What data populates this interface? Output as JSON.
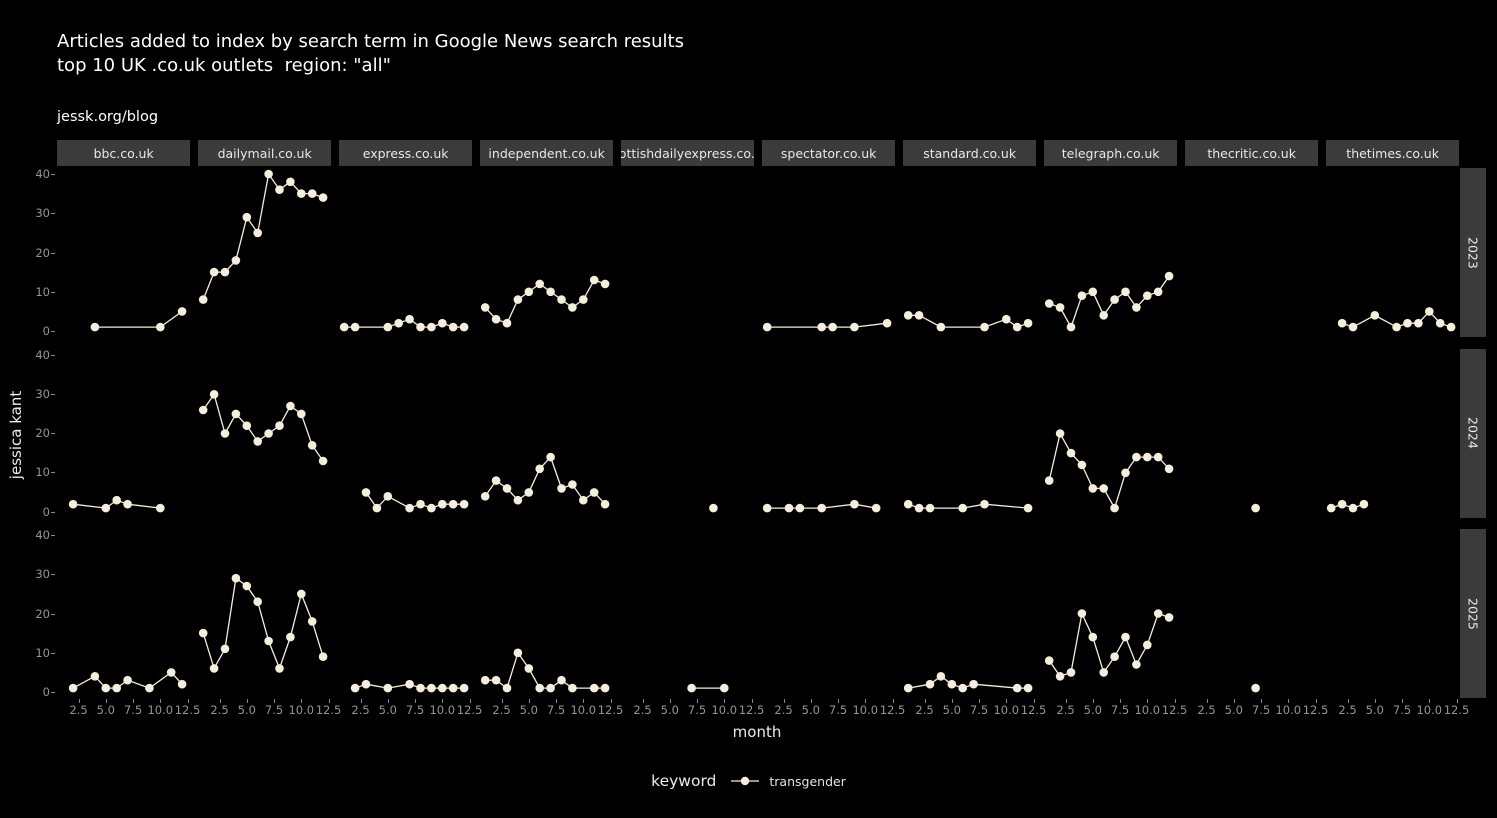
{
  "header": {
    "title_line1": "Articles added to index by search term in Google News search results",
    "title_line2": "top 10 UK .co.uk outlets  region: \"all\"",
    "blog": "jessk.org/blog"
  },
  "colors": {
    "background": "#000000",
    "series": "#f5eedd",
    "strip_bg": "#3b3b3b",
    "strip_text": "#e8e8e8",
    "axis_text": "#949494",
    "title_text": "#ffffff"
  },
  "chart_data": {
    "type": "line",
    "title": "Articles added to index by search term in Google News search results",
    "subtitle": "top 10 UK .co.uk outlets  region: \"all\"",
    "xlabel": "month",
    "ylabel": "jessica kant",
    "xlim": [
      1,
      12.5
    ],
    "ylim": [
      0,
      40
    ],
    "x_ticks": [
      "2.5",
      "5.0",
      "7.5",
      "10.0",
      "12.5"
    ],
    "x_tick_values": [
      2.5,
      5,
      7.5,
      10,
      12.5
    ],
    "y_ticks": [
      "0",
      "10",
      "20",
      "30",
      "40"
    ],
    "y_tick_values": [
      0,
      10,
      20,
      30,
      40
    ],
    "grid": false,
    "legend": {
      "title": "keyword",
      "position": "bottom",
      "entries": [
        "transgender"
      ]
    },
    "facet_cols": [
      "bbc.co.uk",
      "dailymail.co.uk",
      "express.co.uk",
      "independent.co.uk",
      "scottishdailyexpress.co.uk",
      "spectator.co.uk",
      "standard.co.uk",
      "telegraph.co.uk",
      "thecritic.co.uk",
      "thetimes.co.uk"
    ],
    "facet_rows": [
      "2023",
      "2024",
      "2025"
    ],
    "panels": [
      {
        "row": "2023",
        "col": "bbc.co.uk",
        "points": [
          [
            4,
            1
          ],
          [
            10,
            1
          ],
          [
            12,
            5
          ]
        ]
      },
      {
        "row": "2023",
        "col": "dailymail.co.uk",
        "points": [
          [
            1,
            8
          ],
          [
            2,
            15
          ],
          [
            3,
            15
          ],
          [
            4,
            18
          ],
          [
            5,
            29
          ],
          [
            6,
            25
          ],
          [
            7,
            40
          ],
          [
            8,
            36
          ],
          [
            9,
            38
          ],
          [
            10,
            35
          ],
          [
            11,
            35
          ],
          [
            12,
            34
          ]
        ]
      },
      {
        "row": "2023",
        "col": "express.co.uk",
        "points": [
          [
            1,
            1
          ],
          [
            2,
            1
          ],
          [
            5,
            1
          ],
          [
            6,
            2
          ],
          [
            7,
            3
          ],
          [
            8,
            1
          ],
          [
            9,
            1
          ],
          [
            10,
            2
          ],
          [
            11,
            1
          ],
          [
            12,
            1
          ]
        ]
      },
      {
        "row": "2023",
        "col": "independent.co.uk",
        "points": [
          [
            1,
            6
          ],
          [
            2,
            3
          ],
          [
            3,
            2
          ],
          [
            4,
            8
          ],
          [
            5,
            10
          ],
          [
            6,
            12
          ],
          [
            7,
            10
          ],
          [
            8,
            8
          ],
          [
            9,
            6
          ],
          [
            10,
            8
          ],
          [
            11,
            13
          ],
          [
            12,
            12
          ]
        ]
      },
      {
        "row": "2023",
        "col": "scottishdailyexpress.co.uk",
        "points": []
      },
      {
        "row": "2023",
        "col": "spectator.co.uk",
        "points": [
          [
            1,
            1
          ],
          [
            6,
            1
          ],
          [
            7,
            1
          ],
          [
            9,
            1
          ],
          [
            12,
            2
          ]
        ]
      },
      {
        "row": "2023",
        "col": "standard.co.uk",
        "points": [
          [
            1,
            4
          ],
          [
            2,
            4
          ],
          [
            4,
            1
          ],
          [
            8,
            1
          ],
          [
            10,
            3
          ],
          [
            11,
            1
          ],
          [
            12,
            2
          ]
        ]
      },
      {
        "row": "2023",
        "col": "telegraph.co.uk",
        "points": [
          [
            1,
            7
          ],
          [
            2,
            6
          ],
          [
            3,
            1
          ],
          [
            4,
            9
          ],
          [
            5,
            10
          ],
          [
            6,
            4
          ],
          [
            7,
            8
          ],
          [
            8,
            10
          ],
          [
            9,
            6
          ],
          [
            10,
            9
          ],
          [
            11,
            10
          ],
          [
            12,
            14
          ]
        ]
      },
      {
        "row": "2023",
        "col": "thecritic.co.uk",
        "points": []
      },
      {
        "row": "2023",
        "col": "thetimes.co.uk",
        "points": [
          [
            2,
            2
          ],
          [
            3,
            1
          ],
          [
            5,
            4
          ],
          [
            7,
            1
          ],
          [
            8,
            2
          ],
          [
            9,
            2
          ],
          [
            10,
            5
          ],
          [
            11,
            2
          ],
          [
            12,
            1
          ]
        ]
      },
      {
        "row": "2024",
        "col": "bbc.co.uk",
        "points": [
          [
            2,
            2
          ],
          [
            5,
            1
          ],
          [
            6,
            3
          ],
          [
            7,
            2
          ],
          [
            10,
            1
          ]
        ]
      },
      {
        "row": "2024",
        "col": "dailymail.co.uk",
        "points": [
          [
            1,
            26
          ],
          [
            2,
            30
          ],
          [
            3,
            20
          ],
          [
            4,
            25
          ],
          [
            5,
            22
          ],
          [
            6,
            18
          ],
          [
            7,
            20
          ],
          [
            8,
            22
          ],
          [
            9,
            27
          ],
          [
            10,
            25
          ],
          [
            11,
            17
          ],
          [
            12,
            13
          ]
        ]
      },
      {
        "row": "2024",
        "col": "express.co.uk",
        "points": [
          [
            3,
            5
          ],
          [
            4,
            1
          ],
          [
            5,
            4
          ],
          [
            7,
            1
          ],
          [
            8,
            2
          ],
          [
            9,
            1
          ],
          [
            10,
            2
          ],
          [
            11,
            2
          ],
          [
            12,
            2
          ]
        ]
      },
      {
        "row": "2024",
        "col": "independent.co.uk",
        "points": [
          [
            1,
            4
          ],
          [
            2,
            8
          ],
          [
            3,
            6
          ],
          [
            4,
            3
          ],
          [
            5,
            5
          ],
          [
            6,
            11
          ],
          [
            7,
            14
          ],
          [
            8,
            6
          ],
          [
            9,
            7
          ],
          [
            10,
            3
          ],
          [
            11,
            5
          ],
          [
            12,
            2
          ]
        ]
      },
      {
        "row": "2024",
        "col": "scottishdailyexpress.co.uk",
        "points": [
          [
            9,
            1
          ]
        ]
      },
      {
        "row": "2024",
        "col": "spectator.co.uk",
        "points": [
          [
            1,
            1
          ],
          [
            3,
            1
          ],
          [
            4,
            1
          ],
          [
            6,
            1
          ],
          [
            9,
            2
          ],
          [
            11,
            1
          ]
        ]
      },
      {
        "row": "2024",
        "col": "standard.co.uk",
        "points": [
          [
            1,
            2
          ],
          [
            2,
            1
          ],
          [
            3,
            1
          ],
          [
            6,
            1
          ],
          [
            8,
            2
          ],
          [
            12,
            1
          ]
        ]
      },
      {
        "row": "2024",
        "col": "telegraph.co.uk",
        "points": [
          [
            1,
            8
          ],
          [
            2,
            20
          ],
          [
            3,
            15
          ],
          [
            4,
            12
          ],
          [
            5,
            6
          ],
          [
            6,
            6
          ],
          [
            7,
            1
          ],
          [
            8,
            10
          ],
          [
            9,
            14
          ],
          [
            10,
            14
          ],
          [
            11,
            14
          ],
          [
            12,
            11
          ]
        ]
      },
      {
        "row": "2024",
        "col": "thecritic.co.uk",
        "points": [
          [
            7,
            1
          ]
        ]
      },
      {
        "row": "2024",
        "col": "thetimes.co.uk",
        "points": [
          [
            1,
            1
          ],
          [
            2,
            2
          ],
          [
            3,
            1
          ],
          [
            4,
            2
          ]
        ]
      },
      {
        "row": "2025",
        "col": "bbc.co.uk",
        "points": [
          [
            2,
            1
          ],
          [
            4,
            4
          ],
          [
            5,
            1
          ],
          [
            6,
            1
          ],
          [
            7,
            3
          ],
          [
            9,
            1
          ],
          [
            11,
            5
          ],
          [
            12,
            2
          ]
        ]
      },
      {
        "row": "2025",
        "col": "dailymail.co.uk",
        "points": [
          [
            1,
            15
          ],
          [
            2,
            6
          ],
          [
            3,
            11
          ],
          [
            4,
            29
          ],
          [
            5,
            27
          ],
          [
            6,
            23
          ],
          [
            7,
            13
          ],
          [
            8,
            6
          ],
          [
            9,
            14
          ],
          [
            10,
            25
          ],
          [
            11,
            18
          ],
          [
            12,
            9
          ]
        ]
      },
      {
        "row": "2025",
        "col": "express.co.uk",
        "points": [
          [
            2,
            1
          ],
          [
            3,
            2
          ],
          [
            5,
            1
          ],
          [
            7,
            2
          ],
          [
            8,
            1
          ],
          [
            9,
            1
          ],
          [
            10,
            1
          ],
          [
            11,
            1
          ],
          [
            12,
            1
          ]
        ]
      },
      {
        "row": "2025",
        "col": "independent.co.uk",
        "points": [
          [
            1,
            3
          ],
          [
            2,
            3
          ],
          [
            3,
            1
          ],
          [
            4,
            10
          ],
          [
            5,
            6
          ],
          [
            6,
            1
          ],
          [
            7,
            1
          ],
          [
            8,
            3
          ],
          [
            9,
            1
          ],
          [
            11,
            1
          ],
          [
            12,
            1
          ]
        ]
      },
      {
        "row": "2025",
        "col": "scottishdailyexpress.co.uk",
        "points": [
          [
            7,
            1
          ],
          [
            10,
            1
          ]
        ]
      },
      {
        "row": "2025",
        "col": "spectator.co.uk",
        "points": []
      },
      {
        "row": "2025",
        "col": "standard.co.uk",
        "points": [
          [
            1,
            1
          ],
          [
            3,
            2
          ],
          [
            4,
            4
          ],
          [
            5,
            2
          ],
          [
            6,
            1
          ],
          [
            7,
            2
          ],
          [
            11,
            1
          ],
          [
            12,
            1
          ]
        ]
      },
      {
        "row": "2025",
        "col": "telegraph.co.uk",
        "points": [
          [
            1,
            8
          ],
          [
            2,
            4
          ],
          [
            3,
            5
          ],
          [
            4,
            20
          ],
          [
            5,
            14
          ],
          [
            6,
            5
          ],
          [
            7,
            9
          ],
          [
            8,
            14
          ],
          [
            9,
            7
          ],
          [
            10,
            12
          ],
          [
            11,
            20
          ],
          [
            12,
            19
          ]
        ]
      },
      {
        "row": "2025",
        "col": "thecritic.co.uk",
        "points": [
          [
            7,
            1
          ]
        ]
      },
      {
        "row": "2025",
        "col": "thetimes.co.uk",
        "points": []
      }
    ]
  }
}
